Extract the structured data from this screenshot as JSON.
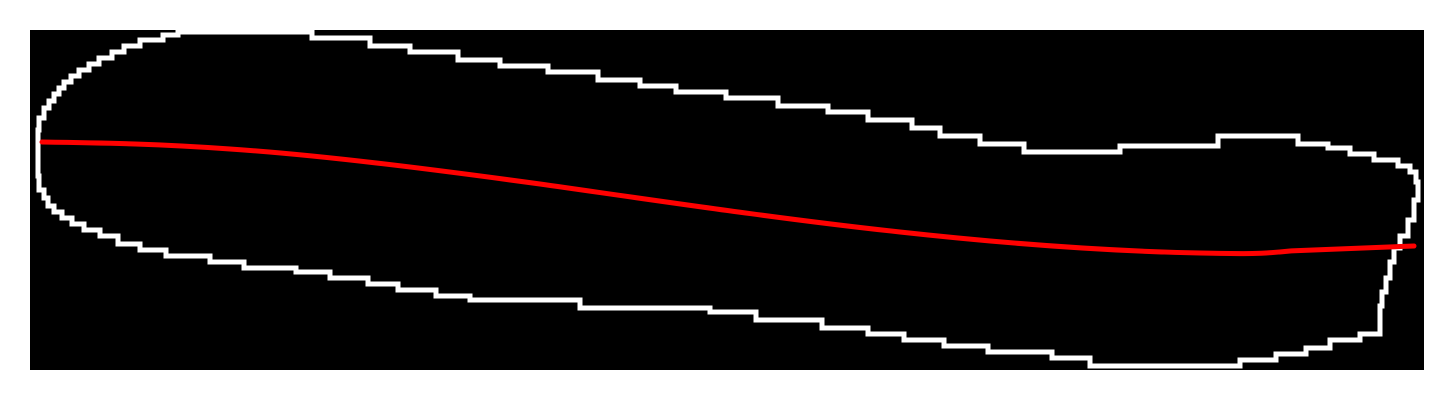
{
  "figure": {
    "background_color": "#000000",
    "contour_color": "#ffffff",
    "centerline_color": "#ff0000",
    "outer_background_color": "#ffffff"
  }
}
